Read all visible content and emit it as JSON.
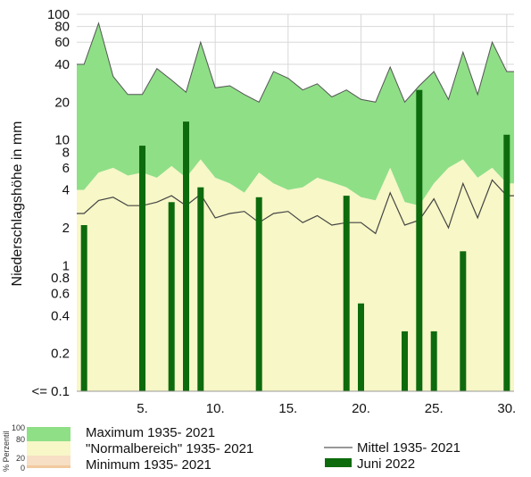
{
  "chart_data": {
    "type": "bar",
    "y_scale": "log",
    "ylabel": "Niederschlagshöhe in mm",
    "ylim": [
      0.1,
      100
    ],
    "y_ticks": [
      "100",
      "80",
      "60",
      "40",
      "20",
      "10",
      "8",
      "6",
      "4",
      "2",
      "1",
      "0.8",
      "0.6",
      "0.4",
      "0.2",
      "<= 0.1"
    ],
    "y_tick_values": [
      100,
      80,
      60,
      40,
      20,
      10,
      8,
      6,
      4,
      2,
      1,
      0.8,
      0.6,
      0.4,
      0.2,
      0.1
    ],
    "x_ticks": [
      "5.",
      "10.",
      "15.",
      "20.",
      "25.",
      "30."
    ],
    "x_tick_values": [
      5,
      10,
      15,
      20,
      25,
      30
    ],
    "days": [
      1,
      2,
      3,
      4,
      5,
      6,
      7,
      8,
      9,
      10,
      11,
      12,
      13,
      14,
      15,
      16,
      17,
      18,
      19,
      20,
      21,
      22,
      23,
      24,
      25,
      26,
      27,
      28,
      29,
      30
    ],
    "grid": true,
    "legend_position": "bottom",
    "series": [
      {
        "name": "Maximum 1935- 2021",
        "color": "#8fdf87",
        "values": [
          40,
          85,
          32,
          23,
          23,
          37,
          30,
          24,
          60,
          26,
          27,
          23,
          20,
          35,
          31,
          25,
          28,
          22,
          25,
          21,
          20,
          38,
          20,
          27,
          35,
          21,
          50,
          23,
          60,
          35
        ]
      },
      {
        "name": "\"Normalbereich\" 1935- 2021",
        "color": "#f7f7c7",
        "values": [
          4,
          5.5,
          6,
          5.2,
          5.5,
          5,
          6.2,
          5,
          7,
          5,
          4.5,
          3.8,
          5.5,
          4.5,
          4,
          4.2,
          5,
          4.6,
          4.2,
          3.5,
          3.3,
          6,
          3.2,
          3,
          4.5,
          6,
          7,
          5,
          6,
          4.5
        ]
      },
      {
        "name": "Minimum 1935- 2021",
        "color": "#f2c9a0",
        "values": [
          0.1,
          0.1,
          0.1,
          0.1,
          0.1,
          0.1,
          0.1,
          0.1,
          0.1,
          0.1,
          0.1,
          0.1,
          0.1,
          0.1,
          0.1,
          0.1,
          0.1,
          0.1,
          0.1,
          0.1,
          0.1,
          0.1,
          0.1,
          0.1,
          0.1,
          0.1,
          0.1,
          0.1,
          0.1,
          0.1
        ]
      },
      {
        "name": "Mittel 1935- 2021",
        "color": "#777777",
        "values": [
          2.6,
          3.3,
          3.5,
          3.0,
          3.0,
          3.2,
          3.6,
          3.0,
          3.7,
          2.4,
          2.6,
          2.7,
          2.2,
          2.6,
          2.7,
          2.2,
          2.5,
          2.1,
          2.2,
          2.2,
          1.8,
          3.8,
          2.1,
          2.3,
          3.4,
          2.0,
          4.5,
          2.4,
          4.8,
          3.6
        ]
      },
      {
        "name": "Juni 2022",
        "color": "#0d6b0d",
        "values": [
          2.1,
          0,
          0,
          0,
          9,
          0,
          3.2,
          14,
          4.2,
          0,
          0,
          0,
          3.5,
          0,
          0,
          0,
          0,
          0,
          3.6,
          0.5,
          0,
          0,
          0.3,
          25,
          0.3,
          0,
          1.3,
          0,
          0,
          11
        ]
      }
    ]
  },
  "legend": {
    "percentile_label": "% Perzentil",
    "percentile_ticks": [
      "100",
      "80",
      "20",
      "0"
    ],
    "items": [
      {
        "label": "Maximum 1935- 2021",
        "color": "#8fdf87"
      },
      {
        "label": "\"Normalbereich\" 1935- 2021",
        "color": "#f7f7c7"
      },
      {
        "label": "Minimum 1935- 2021",
        "color": "#f2c9a0"
      },
      {
        "label": "Mittel 1935- 2021",
        "color": "#777777"
      },
      {
        "label": "Juni 2022",
        "color": "#0d6b0d"
      }
    ]
  }
}
